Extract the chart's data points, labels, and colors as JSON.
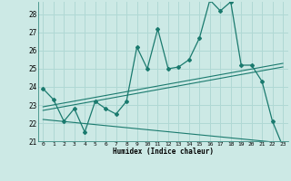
{
  "xlabel": "Humidex (Indice chaleur)",
  "xlim": [
    -0.5,
    23.5
  ],
  "ylim": [
    21,
    28.7
  ],
  "xticks": [
    0,
    1,
    2,
    3,
    4,
    5,
    6,
    7,
    8,
    9,
    10,
    11,
    12,
    13,
    14,
    15,
    16,
    17,
    18,
    19,
    20,
    21,
    22,
    23
  ],
  "yticks": [
    21,
    22,
    23,
    24,
    25,
    26,
    27,
    28
  ],
  "bg_color": "#cce9e5",
  "grid_color": "#b0d8d4",
  "line_color": "#1a7a6e",
  "line_main": [
    23.9,
    23.3,
    22.1,
    22.8,
    21.5,
    23.2,
    22.8,
    22.5,
    23.2,
    26.2,
    25.0,
    27.2,
    25.0,
    25.1,
    25.5,
    26.7,
    28.8,
    28.2,
    28.7,
    25.2,
    25.2,
    24.3,
    22.1,
    20.7
  ],
  "line_upper1": [
    [
      0,
      22.9
    ],
    [
      23,
      25.3
    ]
  ],
  "line_upper2": [
    [
      0,
      22.7
    ],
    [
      23,
      25.1
    ]
  ],
  "line_lower": [
    [
      0,
      22.2
    ],
    [
      23,
      20.9
    ]
  ]
}
